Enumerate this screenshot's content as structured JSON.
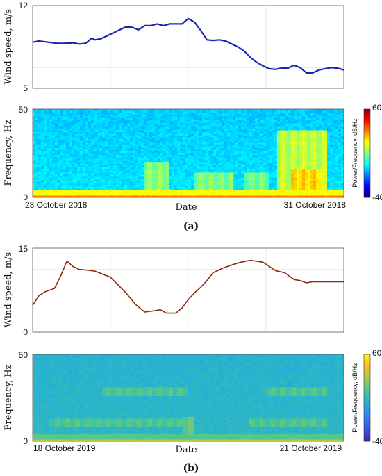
{
  "panel_labels": {
    "a": "(a)",
    "b": "(b)"
  },
  "chart_data": [
    {
      "id": "a-wind",
      "type": "line",
      "ylabel": "Wind speed, m/s",
      "ylim": [
        5,
        12
      ],
      "yticks": [
        5,
        12
      ],
      "series": [
        {
          "color": "#1a22b0",
          "x": [
            0,
            0.02,
            0.05,
            0.08,
            0.1,
            0.13,
            0.15,
            0.17,
            0.19,
            0.2,
            0.22,
            0.24,
            0.26,
            0.28,
            0.3,
            0.32,
            0.34,
            0.36,
            0.38,
            0.4,
            0.42,
            0.44,
            0.46,
            0.48,
            0.5,
            0.52,
            0.54,
            0.56,
            0.58,
            0.6,
            0.62,
            0.64,
            0.66,
            0.68,
            0.7,
            0.72,
            0.74,
            0.76,
            0.78,
            0.8,
            0.82,
            0.84,
            0.86,
            0.88,
            0.9,
            0.92,
            0.94,
            0.96,
            0.98,
            1.0
          ],
          "values": [
            8.9,
            9.0,
            8.9,
            8.8,
            8.8,
            8.85,
            8.75,
            8.8,
            9.25,
            9.1,
            9.2,
            9.45,
            9.7,
            9.95,
            10.2,
            10.15,
            9.95,
            10.3,
            10.3,
            10.45,
            10.3,
            10.45,
            10.45,
            10.45,
            10.9,
            10.6,
            9.9,
            9.1,
            9.05,
            9.1,
            9.0,
            8.75,
            8.5,
            8.15,
            7.6,
            7.2,
            6.9,
            6.65,
            6.6,
            6.7,
            6.7,
            6.95,
            6.75,
            6.3,
            6.3,
            6.55,
            6.65,
            6.75,
            6.7,
            6.55
          ]
        }
      ]
    },
    {
      "id": "a-spec",
      "type": "heatmap",
      "ylabel": "Frequency, Hz",
      "xlabel": "Date",
      "ylim": [
        0,
        50
      ],
      "yticks": [
        0,
        50
      ],
      "x_tick_labels": [
        "28 October 2018",
        "31 October 2018"
      ],
      "colorbar": {
        "label": "Power/Frequency, dB/Hz",
        "min": -40,
        "max": 60,
        "colormap": "jet"
      },
      "bands": [
        {
          "f_range": [
            0,
            1.5
          ],
          "level_db": 35
        },
        {
          "f_range": [
            1.5,
            4
          ],
          "level_db": 22
        }
      ],
      "background_db": -5,
      "bursts": [
        {
          "t_range": [
            0.36,
            0.44
          ],
          "f_range": [
            4,
            20
          ],
          "level_db": 13
        },
        {
          "t_range": [
            0.52,
            0.64
          ],
          "f_range": [
            4,
            14
          ],
          "level_db": 12
        },
        {
          "t_range": [
            0.68,
            0.76
          ],
          "f_range": [
            4,
            14
          ],
          "level_db": 10
        },
        {
          "t_range": [
            0.79,
            0.95
          ],
          "f_range": [
            4,
            38
          ],
          "level_db": 18
        },
        {
          "t_range": [
            0.83,
            0.93
          ],
          "f_range": [
            4,
            16
          ],
          "level_db": 28
        }
      ]
    },
    {
      "id": "b-wind",
      "type": "line",
      "ylabel": "Wind speed, m/s",
      "ylim": [
        0,
        15
      ],
      "yticks": [
        0,
        15
      ],
      "series": [
        {
          "color": "#8b2a0f",
          "x": [
            0,
            0.02,
            0.04,
            0.07,
            0.09,
            0.11,
            0.13,
            0.15,
            0.17,
            0.2,
            0.25,
            0.3,
            0.33,
            0.36,
            0.39,
            0.41,
            0.43,
            0.46,
            0.48,
            0.5,
            0.52,
            0.54,
            0.56,
            0.58,
            0.61,
            0.64,
            0.67,
            0.7,
            0.74,
            0.78,
            0.81,
            0.84,
            0.86,
            0.88,
            0.9,
            0.92,
            0.95,
            0.98,
            1.0
          ],
          "values": [
            4.8,
            6.5,
            7.2,
            7.8,
            10.0,
            12.7,
            11.7,
            11.2,
            11.1,
            10.9,
            9.8,
            7.0,
            5.0,
            3.6,
            3.8,
            4.0,
            3.4,
            3.4,
            4.3,
            5.8,
            7.0,
            8.0,
            9.2,
            10.6,
            11.4,
            12.0,
            12.5,
            12.8,
            12.5,
            11.0,
            10.6,
            9.4,
            9.2,
            8.8,
            9.0,
            9.0,
            9.0,
            9.0,
            9.0
          ]
        }
      ]
    },
    {
      "id": "b-spec",
      "type": "heatmap",
      "ylabel": "Frequency, Hz",
      "xlabel": "Date",
      "ylim": [
        0,
        50
      ],
      "yticks": [
        0,
        50
      ],
      "x_tick_labels": [
        "18 October 2019",
        "21 October 2019"
      ],
      "colorbar": {
        "label": "Power/Frequency, dB/Hz",
        "min": -40,
        "max": 60,
        "colormap": "parula"
      },
      "bands": [
        {
          "f_range": [
            0,
            1.2
          ],
          "level_db": 35
        },
        {
          "f_range": [
            1.2,
            4
          ],
          "level_db": 20
        }
      ],
      "background_db": 8,
      "bursts": [
        {
          "t_range": [
            0.05,
            0.52
          ],
          "f_range": [
            8,
            13
          ],
          "level_db": 20
        },
        {
          "t_range": [
            0.22,
            0.5
          ],
          "f_range": [
            26,
            31
          ],
          "level_db": 20
        },
        {
          "t_range": [
            0.48,
            0.52
          ],
          "f_range": [
            4,
            14
          ],
          "level_db": 24
        },
        {
          "t_range": [
            0.7,
            0.95
          ],
          "f_range": [
            8,
            13
          ],
          "level_db": 20
        },
        {
          "t_range": [
            0.75,
            0.95
          ],
          "f_range": [
            26,
            31
          ],
          "level_db": 20
        }
      ]
    }
  ]
}
